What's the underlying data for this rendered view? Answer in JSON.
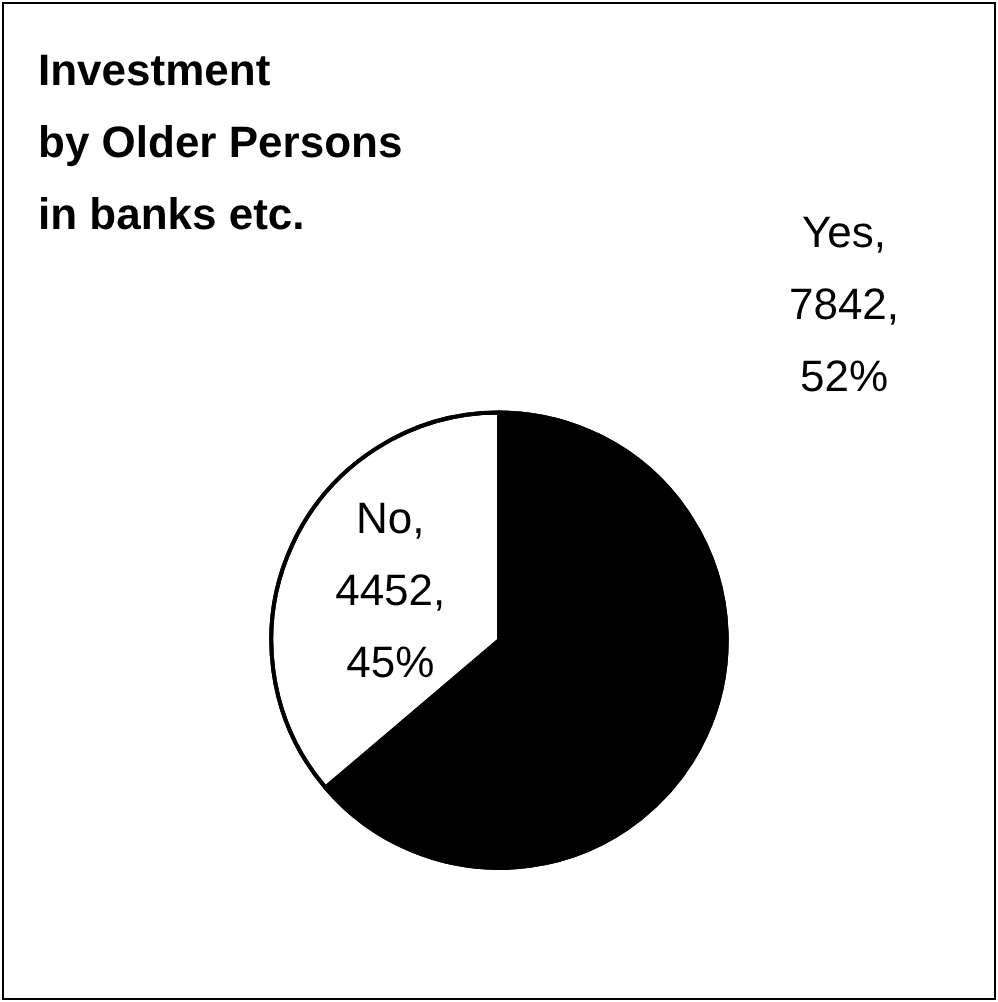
{
  "chart_data": {
    "type": "pie",
    "title": "Investment\nby Older Persons\nin banks etc.",
    "categories": [
      "Yes",
      "No"
    ],
    "values": [
      7842,
      4452
    ],
    "value_labels": [
      ",\n7842,\n52%",
      ",\n4452,\n45%"
    ],
    "colors": [
      "#000000",
      "#ffffff"
    ]
  }
}
